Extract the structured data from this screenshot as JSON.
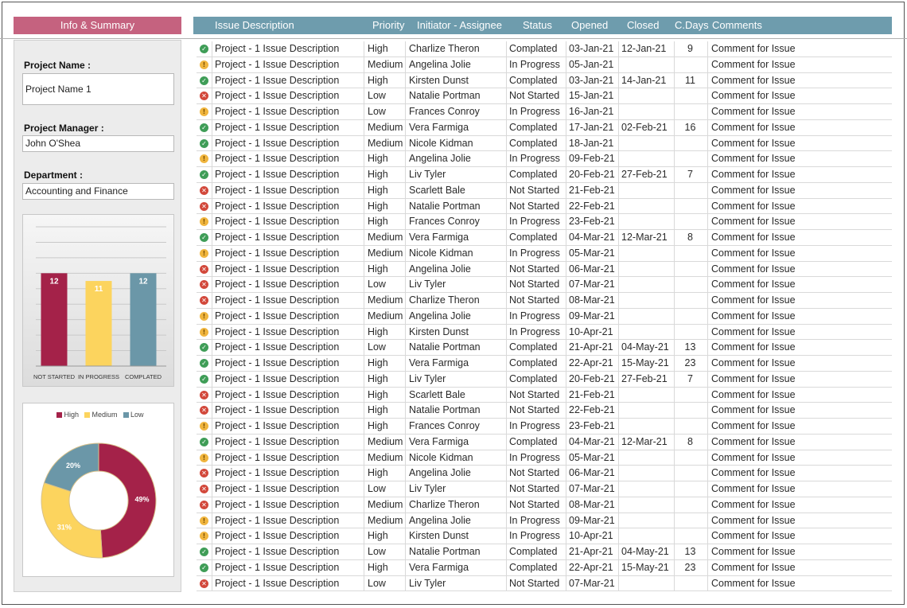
{
  "colors": {
    "left_header_bg": "#c5627f",
    "table_header_bg": "#6e9cad",
    "not_started": "#a42249",
    "in_progress": "#fcd45e",
    "completed": "#6b97a8",
    "high": "#a42249",
    "medium": "#fcd45e",
    "low": "#6b97a8"
  },
  "left_header": "Info & Summary",
  "table_header": [
    "Issue Description",
    "Priority",
    "Initiator - Assignee",
    "Status",
    "Opened",
    "Closed",
    "C.Days",
    "Comments"
  ],
  "info": {
    "project_name_label": "Project Name :",
    "project_name_value": "Project Name 1",
    "project_manager_label": "Project Manager :",
    "project_manager_value": "John O'Shea",
    "department_label": "Department :",
    "department_value": "Accounting and Finance"
  },
  "chart_data": [
    {
      "type": "bar",
      "categories": [
        "NOT STARTED",
        "IN PROGRESS",
        "COMPLATED"
      ],
      "values": [
        12,
        11,
        12
      ],
      "ylim": [
        0,
        18
      ],
      "grid": true
    },
    {
      "type": "pie",
      "donut": true,
      "legend_position": "top",
      "labels": [
        "High",
        "Medium",
        "Low"
      ],
      "values": [
        49,
        31,
        20
      ],
      "value_labels": [
        "49%",
        "31%",
        "20%"
      ]
    }
  ],
  "rows": [
    {
      "icon": "check-icon",
      "status_type": "done",
      "desc": "Project - 1 Issue Description",
      "priority": "High",
      "person": "Charlize Theron",
      "status": "Complated",
      "opened": "03-Jan-21",
      "closed": "12-Jan-21",
      "cdays": "9",
      "comment": "Comment for Issue"
    },
    {
      "icon": "warning-icon",
      "status_type": "prog",
      "desc": "Project - 1 Issue Description",
      "priority": "Medium",
      "person": "Angelina Jolie",
      "status": "In Progress",
      "opened": "05-Jan-21",
      "closed": "",
      "cdays": "",
      "comment": "Comment for Issue"
    },
    {
      "icon": "check-icon",
      "status_type": "done",
      "desc": "Project - 1 Issue Description",
      "priority": "High",
      "person": "Kirsten Dunst",
      "status": "Complated",
      "opened": "03-Jan-21",
      "closed": "14-Jan-21",
      "cdays": "11",
      "comment": "Comment for Issue"
    },
    {
      "icon": "cross-icon",
      "status_type": "not",
      "desc": "Project - 1 Issue Description",
      "priority": "Low",
      "person": "Natalie Portman",
      "status": "Not Started",
      "opened": "15-Jan-21",
      "closed": "",
      "cdays": "",
      "comment": "Comment for Issue"
    },
    {
      "icon": "warning-icon",
      "status_type": "prog",
      "desc": "Project - 1 Issue Description",
      "priority": "Low",
      "person": "Frances Conroy",
      "status": "In Progress",
      "opened": "16-Jan-21",
      "closed": "",
      "cdays": "",
      "comment": "Comment for Issue"
    },
    {
      "icon": "check-icon",
      "status_type": "done",
      "desc": "Project - 1 Issue Description",
      "priority": "Medium",
      "person": "Vera Farmiga",
      "status": "Complated",
      "opened": "17-Jan-21",
      "closed": "02-Feb-21",
      "cdays": "16",
      "comment": "Comment for Issue"
    },
    {
      "icon": "check-icon",
      "status_type": "done",
      "desc": "Project - 1 Issue Description",
      "priority": "Medium",
      "person": "Nicole Kidman",
      "status": "Complated",
      "opened": "18-Jan-21",
      "closed": "",
      "cdays": "",
      "comment": "Comment for Issue"
    },
    {
      "icon": "warning-icon",
      "status_type": "prog",
      "desc": "Project - 1 Issue Description",
      "priority": "High",
      "person": "Angelina Jolie",
      "status": "In Progress",
      "opened": "09-Feb-21",
      "closed": "",
      "cdays": "",
      "comment": "Comment for Issue"
    },
    {
      "icon": "check-icon",
      "status_type": "done",
      "desc": "Project - 1 Issue Description",
      "priority": "High",
      "person": "Liv Tyler",
      "status": "Complated",
      "opened": "20-Feb-21",
      "closed": "27-Feb-21",
      "cdays": "7",
      "comment": "Comment for Issue"
    },
    {
      "icon": "cross-icon",
      "status_type": "not",
      "desc": "Project - 1 Issue Description",
      "priority": "High",
      "person": "Scarlett Bale",
      "status": "Not Started",
      "opened": "21-Feb-21",
      "closed": "",
      "cdays": "",
      "comment": "Comment for Issue"
    },
    {
      "icon": "cross-icon",
      "status_type": "not",
      "desc": "Project - 1 Issue Description",
      "priority": "High",
      "person": "Natalie Portman",
      "status": "Not Started",
      "opened": "22-Feb-21",
      "closed": "",
      "cdays": "",
      "comment": "Comment for Issue"
    },
    {
      "icon": "warning-icon",
      "status_type": "prog",
      "desc": "Project - 1 Issue Description",
      "priority": "High",
      "person": "Frances Conroy",
      "status": "In Progress",
      "opened": "23-Feb-21",
      "closed": "",
      "cdays": "",
      "comment": "Comment for Issue"
    },
    {
      "icon": "check-icon",
      "status_type": "done",
      "desc": "Project - 1 Issue Description",
      "priority": "Medium",
      "person": "Vera Farmiga",
      "status": "Complated",
      "opened": "04-Mar-21",
      "closed": "12-Mar-21",
      "cdays": "8",
      "comment": "Comment for Issue"
    },
    {
      "icon": "warning-icon",
      "status_type": "prog",
      "desc": "Project - 1 Issue Description",
      "priority": "Medium",
      "person": "Nicole Kidman",
      "status": "In Progress",
      "opened": "05-Mar-21",
      "closed": "",
      "cdays": "",
      "comment": "Comment for Issue"
    },
    {
      "icon": "cross-icon",
      "status_type": "not",
      "desc": "Project - 1 Issue Description",
      "priority": "High",
      "person": "Angelina Jolie",
      "status": "Not Started",
      "opened": "06-Mar-21",
      "closed": "",
      "cdays": "",
      "comment": "Comment for Issue"
    },
    {
      "icon": "cross-icon",
      "status_type": "not",
      "desc": "Project - 1 Issue Description",
      "priority": "Low",
      "person": "Liv Tyler",
      "status": "Not Started",
      "opened": "07-Mar-21",
      "closed": "",
      "cdays": "",
      "comment": "Comment for Issue"
    },
    {
      "icon": "cross-icon",
      "status_type": "not",
      "desc": "Project - 1 Issue Description",
      "priority": "Medium",
      "person": "Charlize Theron",
      "status": "Not Started",
      "opened": "08-Mar-21",
      "closed": "",
      "cdays": "",
      "comment": "Comment for Issue"
    },
    {
      "icon": "warning-icon",
      "status_type": "prog",
      "desc": "Project - 1 Issue Description",
      "priority": "Medium",
      "person": "Angelina Jolie",
      "status": "In Progress",
      "opened": "09-Mar-21",
      "closed": "",
      "cdays": "",
      "comment": "Comment for Issue"
    },
    {
      "icon": "warning-icon",
      "status_type": "prog",
      "desc": "Project - 1 Issue Description",
      "priority": "High",
      "person": "Kirsten Dunst",
      "status": "In Progress",
      "opened": "10-Apr-21",
      "closed": "",
      "cdays": "",
      "comment": "Comment for Issue"
    },
    {
      "icon": "check-icon",
      "status_type": "done",
      "desc": "Project - 1 Issue Description",
      "priority": "Low",
      "person": "Natalie Portman",
      "status": "Complated",
      "opened": "21-Apr-21",
      "closed": "04-May-21",
      "cdays": "13",
      "comment": "Comment for Issue"
    },
    {
      "icon": "check-icon",
      "status_type": "done",
      "desc": "Project - 1 Issue Description",
      "priority": "High",
      "person": "Vera Farmiga",
      "status": "Complated",
      "opened": "22-Apr-21",
      "closed": "15-May-21",
      "cdays": "23",
      "comment": "Comment for Issue"
    },
    {
      "icon": "check-icon",
      "status_type": "done",
      "desc": "Project - 1 Issue Description",
      "priority": "High",
      "person": "Liv Tyler",
      "status": "Complated",
      "opened": "20-Feb-21",
      "closed": "27-Feb-21",
      "cdays": "7",
      "comment": "Comment for Issue"
    },
    {
      "icon": "cross-icon",
      "status_type": "not",
      "desc": "Project - 1 Issue Description",
      "priority": "High",
      "person": "Scarlett Bale",
      "status": "Not Started",
      "opened": "21-Feb-21",
      "closed": "",
      "cdays": "",
      "comment": "Comment for Issue"
    },
    {
      "icon": "cross-icon",
      "status_type": "not",
      "desc": "Project - 1 Issue Description",
      "priority": "High",
      "person": "Natalie Portman",
      "status": "Not Started",
      "opened": "22-Feb-21",
      "closed": "",
      "cdays": "",
      "comment": "Comment for Issue"
    },
    {
      "icon": "warning-icon",
      "status_type": "prog",
      "desc": "Project - 1 Issue Description",
      "priority": "High",
      "person": "Frances Conroy",
      "status": "In Progress",
      "opened": "23-Feb-21",
      "closed": "",
      "cdays": "",
      "comment": "Comment for Issue"
    },
    {
      "icon": "check-icon",
      "status_type": "done",
      "desc": "Project - 1 Issue Description",
      "priority": "Medium",
      "person": "Vera Farmiga",
      "status": "Complated",
      "opened": "04-Mar-21",
      "closed": "12-Mar-21",
      "cdays": "8",
      "comment": "Comment for Issue"
    },
    {
      "icon": "warning-icon",
      "status_type": "prog",
      "desc": "Project - 1 Issue Description",
      "priority": "Medium",
      "person": "Nicole Kidman",
      "status": "In Progress",
      "opened": "05-Mar-21",
      "closed": "",
      "cdays": "",
      "comment": "Comment for Issue"
    },
    {
      "icon": "cross-icon",
      "status_type": "not",
      "desc": "Project - 1 Issue Description",
      "priority": "High",
      "person": "Angelina Jolie",
      "status": "Not Started",
      "opened": "06-Mar-21",
      "closed": "",
      "cdays": "",
      "comment": "Comment for Issue"
    },
    {
      "icon": "cross-icon",
      "status_type": "not",
      "desc": "Project - 1 Issue Description",
      "priority": "Low",
      "person": "Liv Tyler",
      "status": "Not Started",
      "opened": "07-Mar-21",
      "closed": "",
      "cdays": "",
      "comment": "Comment for Issue"
    },
    {
      "icon": "cross-icon",
      "status_type": "not",
      "desc": "Project - 1 Issue Description",
      "priority": "Medium",
      "person": "Charlize Theron",
      "status": "Not Started",
      "opened": "08-Mar-21",
      "closed": "",
      "cdays": "",
      "comment": "Comment for Issue"
    },
    {
      "icon": "warning-icon",
      "status_type": "prog",
      "desc": "Project - 1 Issue Description",
      "priority": "Medium",
      "person": "Angelina Jolie",
      "status": "In Progress",
      "opened": "09-Mar-21",
      "closed": "",
      "cdays": "",
      "comment": "Comment for Issue"
    },
    {
      "icon": "warning-icon",
      "status_type": "prog",
      "desc": "Project - 1 Issue Description",
      "priority": "High",
      "person": "Kirsten Dunst",
      "status": "In Progress",
      "opened": "10-Apr-21",
      "closed": "",
      "cdays": "",
      "comment": "Comment for Issue"
    },
    {
      "icon": "check-icon",
      "status_type": "done",
      "desc": "Project - 1 Issue Description",
      "priority": "Low",
      "person": "Natalie Portman",
      "status": "Complated",
      "opened": "21-Apr-21",
      "closed": "04-May-21",
      "cdays": "13",
      "comment": "Comment for Issue"
    },
    {
      "icon": "check-icon",
      "status_type": "done",
      "desc": "Project - 1 Issue Description",
      "priority": "High",
      "person": "Vera Farmiga",
      "status": "Complated",
      "opened": "22-Apr-21",
      "closed": "15-May-21",
      "cdays": "23",
      "comment": "Comment for Issue"
    },
    {
      "icon": "cross-icon",
      "status_type": "not",
      "desc": "Project - 1 Issue Description",
      "priority": "Low",
      "person": "Liv Tyler",
      "status": "Not Started",
      "opened": "07-Mar-21",
      "closed": "",
      "cdays": "",
      "comment": "Comment for Issue"
    }
  ]
}
